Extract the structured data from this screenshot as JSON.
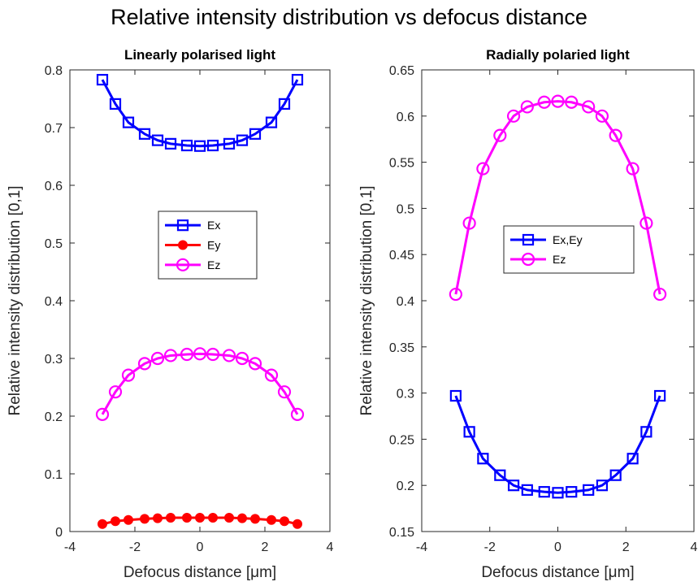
{
  "figure": {
    "title": "Relative intensity distribution vs defocus distance"
  },
  "chart_data": [
    {
      "type": "line",
      "title": "Linearly polarised light",
      "xlabel": "Defocus distance [μm]",
      "ylabel": "Relative intensity distribution [0,1]",
      "xlim": [
        -4,
        4
      ],
      "ylim": [
        0,
        0.8
      ],
      "xticks": [
        -4,
        -2,
        0,
        2,
        4
      ],
      "yticks": [
        0,
        0.1,
        0.2,
        0.3,
        0.4,
        0.5,
        0.6,
        0.7,
        0.8
      ],
      "xtick_labels": [
        "-4",
        "-2",
        "0",
        "2",
        "4"
      ],
      "ytick_labels": [
        "0",
        "0.1",
        "0.2",
        "0.3",
        "0.4",
        "0.5",
        "0.6",
        "0.7",
        "0.8"
      ],
      "grid": false,
      "legend_position": "center",
      "x": [
        -3.0,
        -2.6,
        -2.2,
        -1.7,
        -1.3,
        -0.9,
        -0.4,
        0.0,
        0.4,
        0.9,
        1.3,
        1.7,
        2.2,
        2.6,
        3.0
      ],
      "series": [
        {
          "name": "Ex",
          "color": "#0000ff",
          "marker": "square",
          "values": [
            0.783,
            0.741,
            0.709,
            0.689,
            0.678,
            0.672,
            0.669,
            0.668,
            0.669,
            0.672,
            0.678,
            0.689,
            0.709,
            0.741,
            0.783
          ]
        },
        {
          "name": "Ey",
          "color": "#ff0000",
          "marker": "filled-circle",
          "values": [
            0.013,
            0.018,
            0.02,
            0.022,
            0.023,
            0.024,
            0.024,
            0.024,
            0.024,
            0.024,
            0.023,
            0.022,
            0.02,
            0.018,
            0.013
          ]
        },
        {
          "name": "Ez",
          "color": "#ff00ff",
          "marker": "circle",
          "values": [
            0.203,
            0.242,
            0.271,
            0.291,
            0.3,
            0.305,
            0.307,
            0.308,
            0.307,
            0.305,
            0.3,
            0.291,
            0.271,
            0.242,
            0.203
          ]
        }
      ]
    },
    {
      "type": "line",
      "title": "Radially polaried light",
      "xlabel": "Defocus distance [μm]",
      "ylabel": "Relative intensity distribution [0,1]",
      "xlim": [
        -4,
        4
      ],
      "ylim": [
        0.15,
        0.65
      ],
      "xticks": [
        -4,
        -2,
        0,
        2,
        4
      ],
      "yticks": [
        0.15,
        0.2,
        0.25,
        0.3,
        0.35,
        0.4,
        0.45,
        0.5,
        0.55,
        0.6,
        0.65
      ],
      "xtick_labels": [
        "-4",
        "-2",
        "0",
        "2",
        "4"
      ],
      "ytick_labels": [
        "0.15",
        "0.2",
        "0.25",
        "0.3",
        "0.35",
        "0.4",
        "0.45",
        "0.5",
        "0.55",
        "0.6",
        "0.65"
      ],
      "grid": false,
      "legend_position": "center",
      "x": [
        -3.0,
        -2.6,
        -2.2,
        -1.7,
        -1.3,
        -0.9,
        -0.4,
        0.0,
        0.4,
        0.9,
        1.3,
        1.7,
        2.2,
        2.6,
        3.0
      ],
      "series": [
        {
          "name": "Ex,Ey",
          "color": "#0000ff",
          "marker": "square",
          "values": [
            0.297,
            0.258,
            0.229,
            0.211,
            0.2,
            0.195,
            0.193,
            0.192,
            0.193,
            0.195,
            0.2,
            0.211,
            0.229,
            0.258,
            0.297
          ]
        },
        {
          "name": "Ez",
          "color": "#ff00ff",
          "marker": "circle",
          "values": [
            0.407,
            0.484,
            0.543,
            0.579,
            0.6,
            0.61,
            0.615,
            0.616,
            0.615,
            0.61,
            0.6,
            0.579,
            0.543,
            0.484,
            0.407
          ]
        }
      ]
    }
  ]
}
